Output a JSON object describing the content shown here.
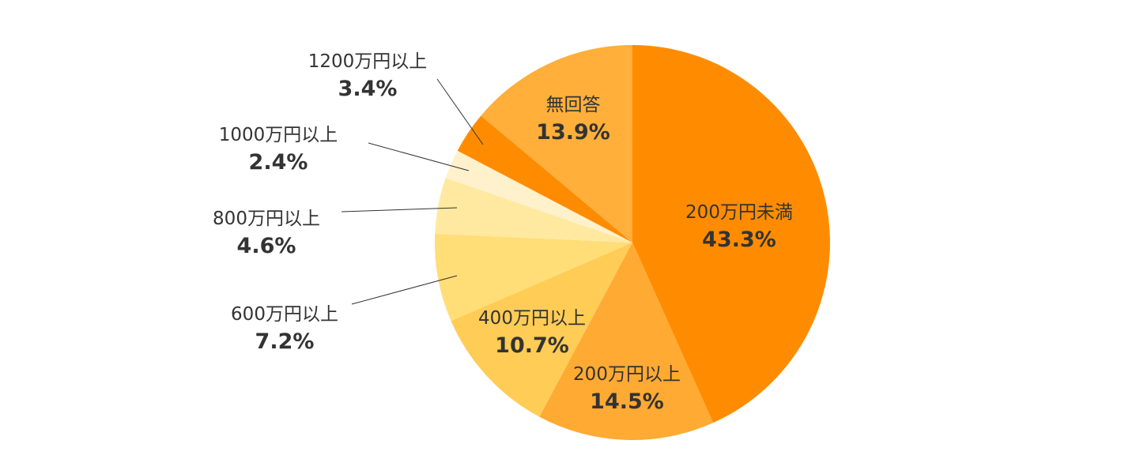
{
  "chart_data": {
    "type": "pie",
    "title": "",
    "start": "12 o'clock",
    "direction": "clockwise",
    "slices": [
      {
        "label": "200万円未満",
        "value": 43.3,
        "value_label": "43.3%",
        "color": "#FF8C00",
        "label_position": "inside"
      },
      {
        "label": "200万円以上",
        "value": 14.5,
        "value_label": "14.5%",
        "color": "#FFAA33",
        "label_position": "inside"
      },
      {
        "label": "400万円以上",
        "value": 10.7,
        "value_label": "10.7%",
        "color": "#FFCC55",
        "label_position": "inside"
      },
      {
        "label": "600万円以上",
        "value": 7.2,
        "value_label": "7.2%",
        "color": "#FFDD77",
        "label_position": "outside"
      },
      {
        "label": "800万円以上",
        "value": 4.6,
        "value_label": "4.6%",
        "color": "#FFE8A0",
        "label_position": "outside"
      },
      {
        "label": "1000万円以上",
        "value": 2.4,
        "value_label": "2.4%",
        "color": "#FFF1CC",
        "label_position": "outside"
      },
      {
        "label": "1200万円以上",
        "value": 3.4,
        "value_label": "3.4%",
        "color": "#FF8C00",
        "label_position": "outside"
      },
      {
        "label": "無回答",
        "value": 13.9,
        "value_label": "13.9%",
        "color": "#FFAF3A",
        "label_position": "inside"
      }
    ]
  }
}
